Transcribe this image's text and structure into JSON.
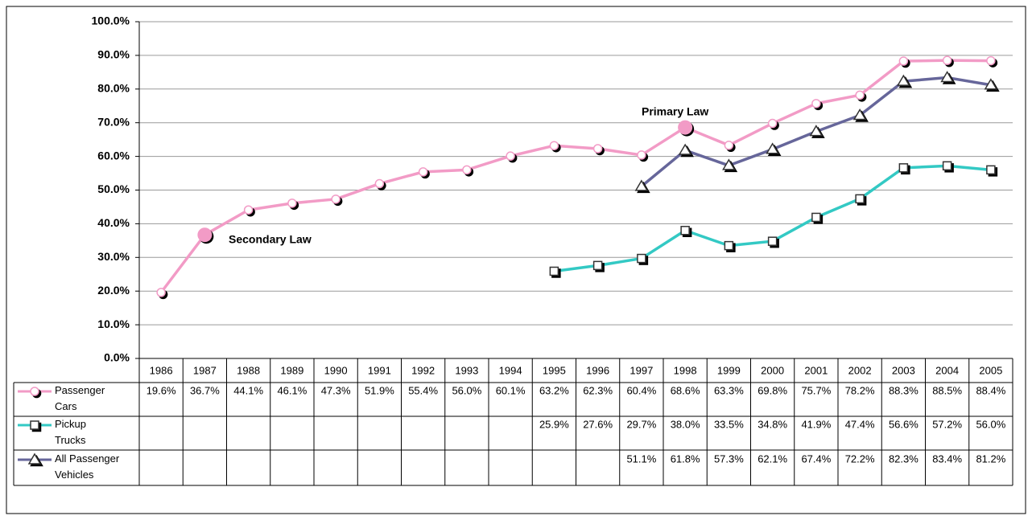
{
  "chart_data": {
    "type": "line",
    "categories": [
      "1986",
      "1987",
      "1988",
      "1989",
      "1990",
      "1991",
      "1992",
      "1993",
      "1994",
      "1995",
      "1996",
      "1997",
      "1998",
      "1999",
      "2000",
      "2001",
      "2002",
      "2003",
      "2004",
      "2005"
    ],
    "series": [
      {
        "name": "Passenger Cars",
        "color": "#f29bc6",
        "marker": "circle",
        "values": [
          19.6,
          36.7,
          44.1,
          46.1,
          47.3,
          51.9,
          55.4,
          56.0,
          60.1,
          63.2,
          62.3,
          60.4,
          68.6,
          63.3,
          69.8,
          75.7,
          78.2,
          88.3,
          88.5,
          88.4
        ],
        "value_labels": [
          "19.6%",
          "36.7%",
          "44.1%",
          "46.1%",
          "47.3%",
          "51.9%",
          "55.4%",
          "56.0%",
          "60.1%",
          "63.2%",
          "62.3%",
          "60.4%",
          "68.6%",
          "63.3%",
          "69.8%",
          "75.7%",
          "78.2%",
          "88.3%",
          "88.5%",
          "88.4%"
        ]
      },
      {
        "name": "Pickup Trucks",
        "color": "#33c9c4",
        "marker": "square",
        "values": [
          null,
          null,
          null,
          null,
          null,
          null,
          null,
          null,
          null,
          25.9,
          27.6,
          29.7,
          38.0,
          33.5,
          34.8,
          41.9,
          47.4,
          56.6,
          57.2,
          56.0
        ],
        "value_labels": [
          null,
          null,
          null,
          null,
          null,
          null,
          null,
          null,
          null,
          "25.9%",
          "27.6%",
          "29.7%",
          "38.0%",
          "33.5%",
          "34.8%",
          "41.9%",
          "47.4%",
          "56.6%",
          "57.2%",
          "56.0%"
        ]
      },
      {
        "name": "All Passenger Vehicles",
        "color": "#66669a",
        "marker": "triangle",
        "values": [
          null,
          null,
          null,
          null,
          null,
          null,
          null,
          null,
          null,
          null,
          null,
          51.1,
          61.8,
          57.3,
          62.1,
          67.4,
          72.2,
          82.3,
          83.4,
          81.2
        ],
        "value_labels": [
          null,
          null,
          null,
          null,
          null,
          null,
          null,
          null,
          null,
          null,
          null,
          "51.1%",
          "61.8%",
          "57.3%",
          "62.1%",
          "67.4%",
          "72.2%",
          "82.3%",
          "83.4%",
          "81.2%"
        ]
      }
    ],
    "annotations": [
      "Secondary Law",
      "Primary Law"
    ],
    "ylim": [
      0,
      100
    ],
    "yticks": [
      {
        "value": 0,
        "label": "0.0%"
      },
      {
        "value": 10,
        "label": "10.0%"
      },
      {
        "value": 20,
        "label": "20.0%"
      },
      {
        "value": 30,
        "label": "30.0%"
      },
      {
        "value": 40,
        "label": "40.0%"
      },
      {
        "value": 50,
        "label": "50.0%"
      },
      {
        "value": 60,
        "label": "60.0%"
      },
      {
        "value": 70,
        "label": "70.0%"
      },
      {
        "value": 80,
        "label": "80.0%"
      },
      {
        "value": 90,
        "label": "90.0%"
      },
      {
        "value": 100,
        "label": "100.0%"
      }
    ],
    "grid": true
  }
}
